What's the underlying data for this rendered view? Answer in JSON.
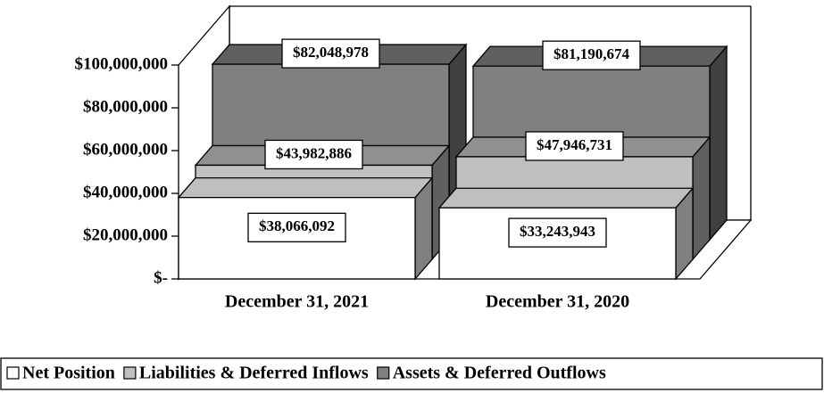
{
  "chart_data": {
    "type": "bar3d",
    "categories": [
      "December 31, 2021",
      "December 31, 2020"
    ],
    "series": [
      {
        "name": "Net Position",
        "color": "#ffffff",
        "values": [
          38066092,
          33243943
        ],
        "value_labels": [
          "$38,066,092",
          "$33,243,943"
        ]
      },
      {
        "name": "Liabilities & Deferred Inflows",
        "color": "#c0c0c0",
        "values": [
          43982886,
          47946731
        ],
        "value_labels": [
          "$43,982,886",
          "$47,946,731"
        ]
      },
      {
        "name": "Assets & Deferred Outflows",
        "color": "#808080",
        "values": [
          82048978,
          81190674
        ],
        "value_labels": [
          "$82,048,978",
          "$81,190,674"
        ]
      }
    ],
    "ylim": [
      0,
      100000000
    ],
    "yticks": [
      {
        "value": 0,
        "label": "$-"
      },
      {
        "value": 20000000,
        "label": "$20,000,000"
      },
      {
        "value": 40000000,
        "label": "$40,000,000"
      },
      {
        "value": 60000000,
        "label": "$60,000,000"
      },
      {
        "value": 80000000,
        "label": "$80,000,000"
      },
      {
        "value": 100000000,
        "label": "$100,000,000"
      }
    ],
    "legend": "bottom"
  }
}
